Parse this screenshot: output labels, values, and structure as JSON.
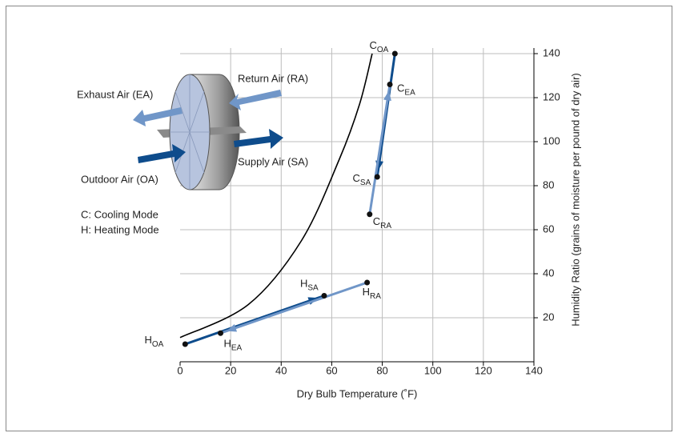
{
  "chart_data": {
    "type": "scatter",
    "x_label": "Dry Bulb Temperature (˚F)",
    "y_label": "Humidity Ratio (grains of moisture per pound of dry air)",
    "xlim": [
      0,
      140
    ],
    "xticks": [
      0,
      20,
      40,
      60,
      80,
      100,
      120,
      140
    ],
    "ylim": [
      0,
      140
    ],
    "yticks": [
      20,
      40,
      60,
      80,
      100,
      120,
      140
    ],
    "grid": true,
    "saturation_curve": {
      "color": "#000000",
      "x": [
        0,
        27,
        48,
        63,
        71,
        76
      ],
      "y": [
        11,
        26,
        55,
        92,
        117,
        140
      ]
    },
    "paths": [
      {
        "color": "#0e4c8c",
        "points": [
          {
            "name": "C",
            "sub": "OA",
            "x": 85,
            "y": 140
          },
          {
            "name": "C",
            "sub": "SA",
            "x": 78,
            "y": 84
          }
        ]
      },
      {
        "color": "#7096c8",
        "points": [
          {
            "name": "C",
            "sub": "RA",
            "x": 75,
            "y": 67
          },
          {
            "name": "C",
            "sub": "EA",
            "x": 83,
            "y": 126
          }
        ]
      },
      {
        "color": "#0e4c8c",
        "points": [
          {
            "name": "H",
            "sub": "OA",
            "x": 2,
            "y": 8
          },
          {
            "name": "H",
            "sub": "SA",
            "x": 57,
            "y": 30
          }
        ]
      },
      {
        "color": "#7096c8",
        "points": [
          {
            "name": "H",
            "sub": "RA",
            "x": 74,
            "y": 36
          },
          {
            "name": "H",
            "sub": "EA",
            "x": 16,
            "y": 13
          }
        ]
      }
    ],
    "illustration": {
      "return_air": "Return Air (RA)",
      "exhaust_air": "Exhaust Air (EA)",
      "supply_air": "Supply Air (SA)",
      "outdoor_air": "Outdoor Air (OA)",
      "modes": [
        "C: Cooling Mode",
        "H: Heating Mode"
      ]
    }
  }
}
